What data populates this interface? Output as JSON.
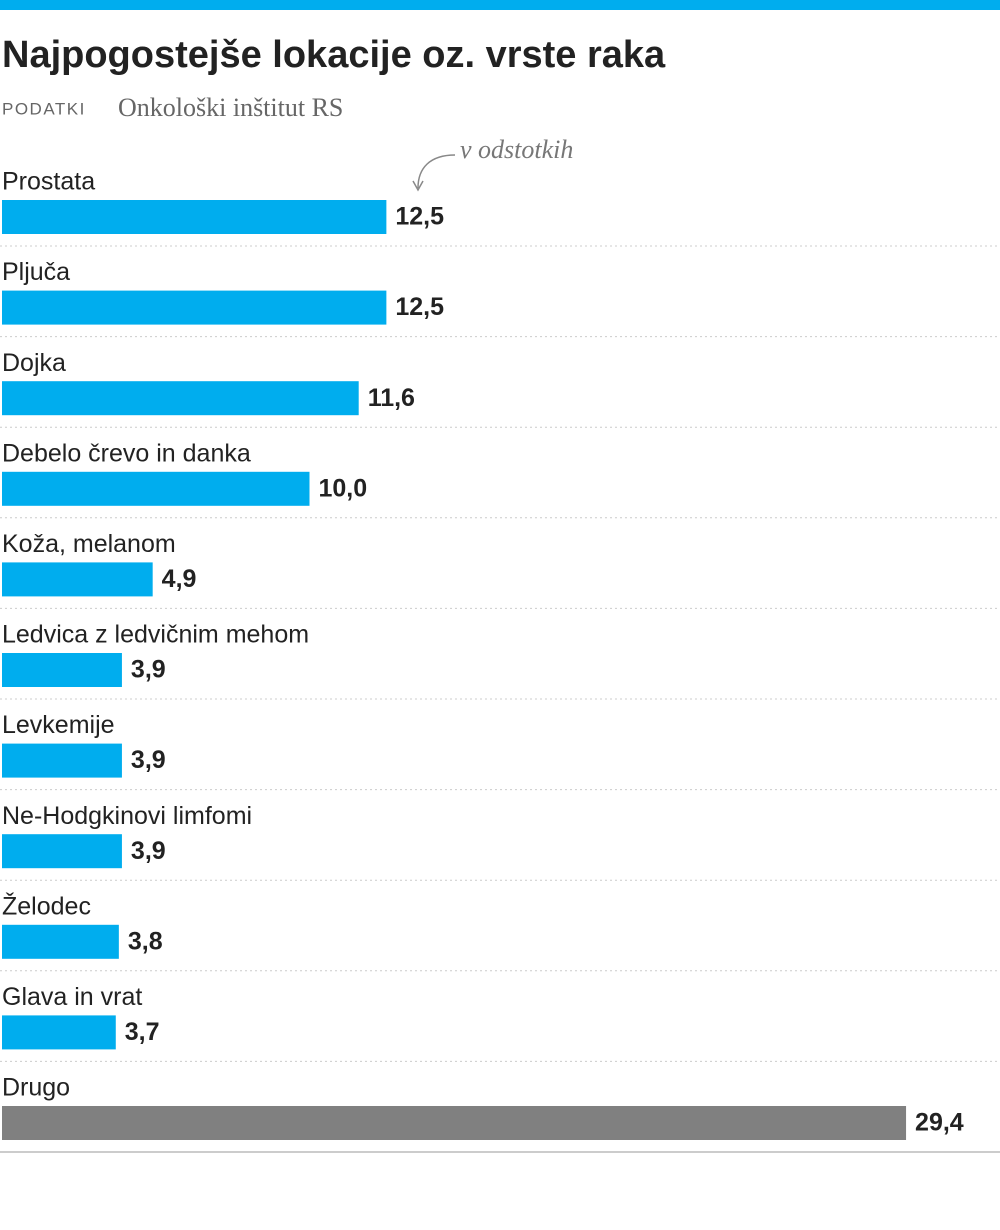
{
  "chart_data": {
    "type": "bar",
    "orientation": "horizontal",
    "title": "Najpogostejše lokacije oz. vrste raka",
    "source_label": "PODATKI",
    "source": "Onkološki inštitut RS",
    "annotation": "v odstotkih",
    "categories": [
      "Prostata",
      "Pljuča",
      "Dojka",
      "Debelo črevo in danka",
      "Koža, melanom",
      "Ledvica z ledvičnim mehom",
      "Levkemije",
      "Ne-Hodgkinovi limfomi",
      "Želodec",
      "Glava in vrat",
      "Drugo"
    ],
    "values": [
      12.5,
      12.5,
      11.6,
      10.0,
      4.9,
      3.9,
      3.9,
      3.9,
      3.8,
      3.7,
      29.4
    ],
    "value_labels": [
      "12,5",
      "12,5",
      "11,6",
      "10,0",
      "4,9",
      "3,9",
      "3,9",
      "3,9",
      "3,8",
      "3,7",
      "29,4"
    ],
    "colors": [
      "#00adee",
      "#00adee",
      "#00adee",
      "#00adee",
      "#00adee",
      "#00adee",
      "#00adee",
      "#00adee",
      "#00adee",
      "#00adee",
      "#808080"
    ]
  }
}
